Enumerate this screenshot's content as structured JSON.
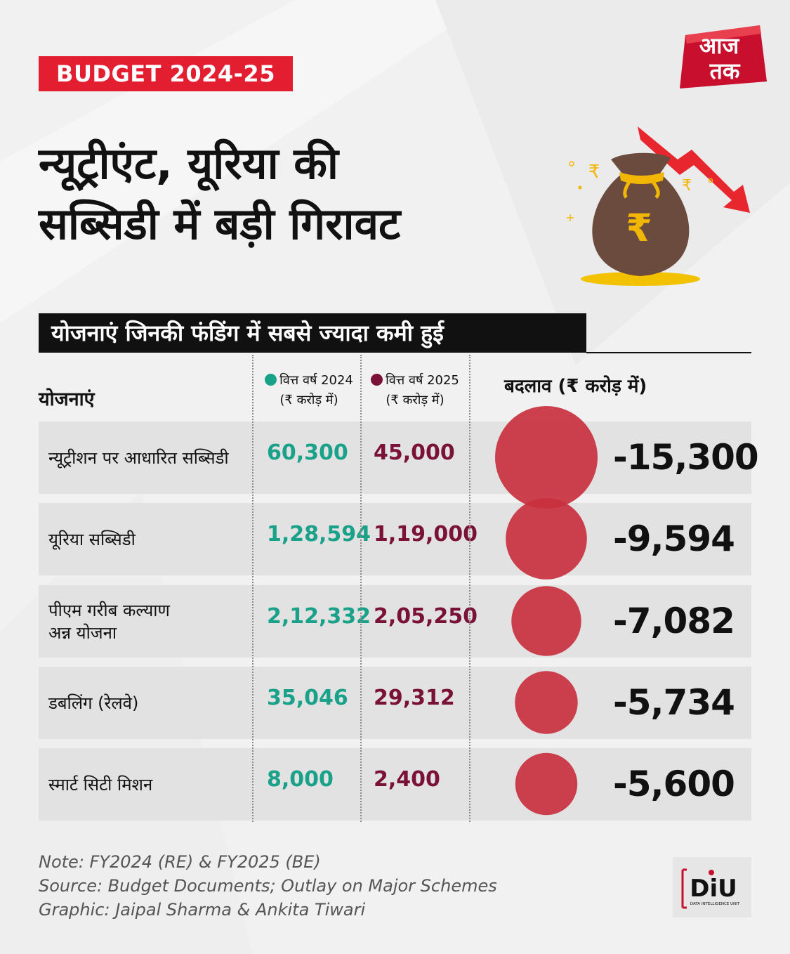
{
  "tag": "BUDGET 2024-25",
  "logo": {
    "line1": "आज",
    "line2": "तक"
  },
  "title": {
    "line1": "न्यूट्रीएंट, यूरिया की",
    "line2": "सब्सिडी में बड़ी गिरावट"
  },
  "subtitle": "योजनाएं जिनकी फंडिंग में सबसे ज्यादा कमी हुई",
  "headers": {
    "scheme": "योजनाएं",
    "fy2024_line1": "वित्त वर्ष 2024",
    "fy2024_line2": "(₹ करोड़ में)",
    "fy2025_line1": "वित्त वर्ष 2025",
    "fy2025_line2": "(₹ करोड़ में)",
    "change": "बदलाव (₹ करोड़ में)"
  },
  "colors": {
    "fy2024": "#1aa189",
    "fy2025": "#7a1136",
    "bubble": "#c9303e",
    "tag": "#e31e30"
  },
  "chart_data": {
    "type": "table",
    "columns": [
      "योजनाएं",
      "वित्त वर्ष 2024",
      "वित्त वर्ष 2025",
      "बदलाव (₹ करोड़ में)"
    ],
    "rows": [
      {
        "scheme": "न्यूट्रीशन पर आधारित सब्सिडी",
        "fy2024": "60,300",
        "fy2025": "45,000",
        "change": "-15,300",
        "change_value": -15300
      },
      {
        "scheme": "यूरिया सब्सिडी",
        "fy2024": "1,28,594",
        "fy2025": "1,19,000",
        "change": "-9,594",
        "change_value": -9594
      },
      {
        "scheme": "पीएम गरीब कल्याण\nअन्न योजना",
        "fy2024": "2,12,332",
        "fy2025": "2,05,250",
        "change": "-7,082",
        "change_value": -7082
      },
      {
        "scheme": "डबलिंग (रेलवे)",
        "fy2024": "35,046",
        "fy2025": "29,312",
        "change": "-5,734",
        "change_value": -5734
      },
      {
        "scheme": "स्मार्ट सिटी मिशन",
        "fy2024": "8,000",
        "fy2025": "2,400",
        "change": "-5,600",
        "change_value": -5600
      }
    ]
  },
  "notes": [
    "Note: FY2024 (RE) & FY2025 (BE)",
    "Source: Budget Documents; Outlay on Major Schemes",
    "Graphic: Jaipal Sharma & Ankita Tiwari"
  ],
  "diu": {
    "main": "DiU",
    "sub": "DATA INTELLIGENCE UNIT"
  },
  "bag_symbol": "₹"
}
